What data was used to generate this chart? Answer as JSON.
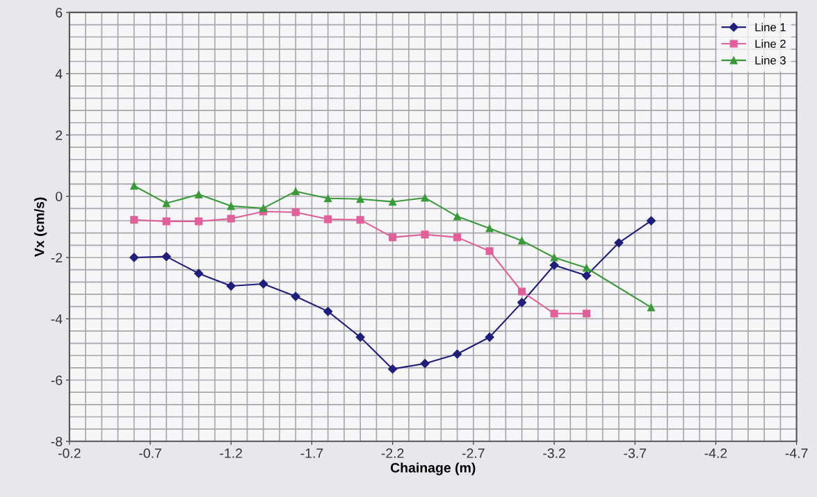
{
  "chart_data": {
    "type": "line",
    "xlabel": "Chainage (m)",
    "ylabel": "Vx (cm/s)",
    "xlim": [
      -0.2,
      -4.7
    ],
    "xticks": [
      -0.2,
      -0.7,
      -1.2,
      -1.7,
      -2.2,
      -2.7,
      -3.2,
      -3.7,
      -4.2,
      -4.7
    ],
    "ylim": [
      -8,
      6
    ],
    "yticks": [
      -8,
      -6,
      -4,
      -2,
      0,
      2,
      4,
      6
    ],
    "grid": true,
    "legend": "top right",
    "line_style": "solid",
    "series": [
      {
        "name": "Line 1",
        "color": "#1f1f7a",
        "marker": "diamond",
        "x": [
          -0.6,
          -0.8,
          -1.0,
          -1.2,
          -1.4,
          -1.6,
          -1.8,
          -2.0,
          -2.2,
          -2.4,
          -2.6,
          -2.8,
          -3.0,
          -3.2,
          -3.4,
          -3.6,
          -3.8
        ],
        "values": [
          -2.0,
          -1.97,
          -2.52,
          -2.93,
          -2.86,
          -3.27,
          -3.76,
          -4.6,
          -5.64,
          -5.46,
          -5.15,
          -4.6,
          -3.47,
          -2.25,
          -2.59,
          -1.52,
          -0.8
        ]
      },
      {
        "name": "Line 2",
        "color": "#e0609a",
        "marker": "square",
        "x": [
          -0.6,
          -0.8,
          -1.0,
          -1.2,
          -1.4,
          -1.6,
          -1.8,
          -2.0,
          -2.2,
          -2.4,
          -2.6,
          -2.8,
          -3.0,
          -3.2,
          -3.4
        ],
        "values": [
          -0.77,
          -0.82,
          -0.82,
          -0.73,
          -0.5,
          -0.52,
          -0.75,
          -0.77,
          -1.34,
          -1.25,
          -1.34,
          -1.79,
          -3.11,
          -3.83,
          -3.83
        ]
      },
      {
        "name": "Line 3",
        "color": "#3a9a3a",
        "marker": "triangle",
        "x": [
          -0.6,
          -0.8,
          -1.0,
          -1.2,
          -1.4,
          -1.6,
          -1.8,
          -2.0,
          -2.2,
          -2.4,
          -2.6,
          -2.8,
          -3.0,
          -3.2,
          -3.4,
          -3.8
        ],
        "values": [
          0.34,
          -0.23,
          0.06,
          -0.32,
          -0.39,
          0.16,
          -0.07,
          -0.09,
          -0.18,
          -0.05,
          -0.66,
          -1.05,
          -1.45,
          -2.0,
          -2.34,
          -3.63
        ]
      }
    ]
  }
}
